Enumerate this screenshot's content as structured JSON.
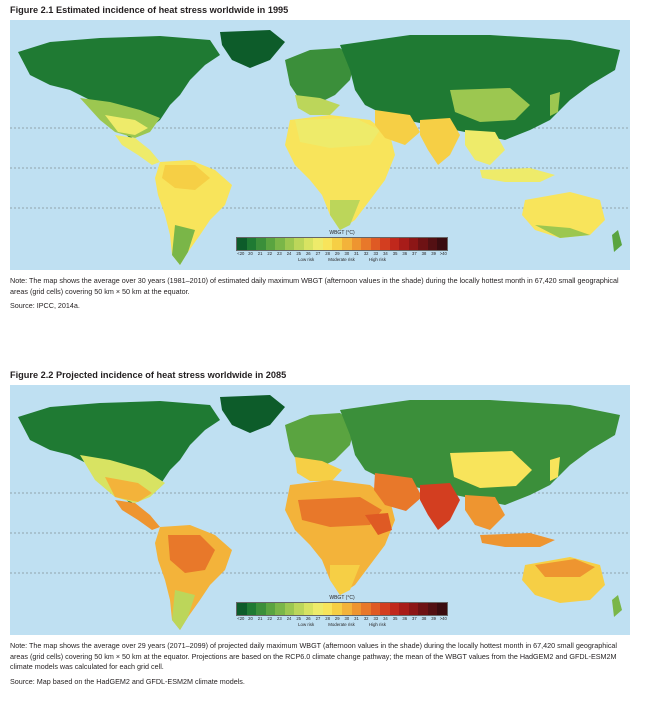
{
  "figures": [
    {
      "title": "Figure 2.1  Estimated incidence of heat stress worldwide in 1995",
      "legend": {
        "title": "WBGT (°C)",
        "ticks": [
          "<20",
          "20",
          "21",
          "22",
          "23",
          "24",
          "25",
          "26",
          "27",
          "28",
          "29",
          "30",
          "31",
          "32",
          "33",
          "34",
          "35",
          "36",
          "37",
          "38",
          "39",
          ">40"
        ],
        "risk_labels": [
          "Low risk",
          "Moderate risk",
          "High risk"
        ]
      },
      "note": "Note: The map shows the average over 30 years (1981–2010) of estimated daily maximum WBGT (afternoon values in the shade) during the locally hottest month in 67,420 small geographical areas (grid cells) covering 50 km × 50 km at the equator.",
      "source": "Source: IPCC, 2014a."
    },
    {
      "title": "Figure 2.2  Projected incidence of heat stress worldwide in 2085",
      "legend": {
        "title": "WBGT (°C)",
        "ticks": [
          "<20",
          "20",
          "21",
          "22",
          "23",
          "24",
          "25",
          "26",
          "27",
          "28",
          "29",
          "30",
          "31",
          "32",
          "33",
          "34",
          "35",
          "36",
          "37",
          "38",
          "39",
          ">40"
        ],
        "risk_labels": [
          "Low risk",
          "Moderate risk",
          "High risk"
        ]
      },
      "note": "Note: The map shows the average over 29 years (2071–2099) of projected daily maximum WBGT (afternoon values in the shade) during the locally hottest month in 67,420 small geographical areas (grid cells) covering 50 km × 50 km at the equator. Projections are based on the RCP6.0 climate change pathway; the mean of the WBGT values from the HadGEM2 and GFDL-ESM2M climate models was calculated for each grid cell.",
      "source": "Source: Map based on the HadGEM2 and GFDL-ESM2M climate models."
    }
  ],
  "colors": {
    "ocean": "#bfe0f2",
    "scale": [
      "#0d5c2a",
      "#1f7a33",
      "#3b8f3a",
      "#5aa440",
      "#7ab648",
      "#9cc750",
      "#bcd65a",
      "#d8e362",
      "#eeeb6a",
      "#f8e45b",
      "#f6cf45",
      "#f3b33a",
      "#ee9530",
      "#e8782a",
      "#df5a24",
      "#d33e20",
      "#c0281c",
      "#a81c19",
      "#8c1616",
      "#6e1214",
      "#531013",
      "#3a0c10"
    ]
  }
}
